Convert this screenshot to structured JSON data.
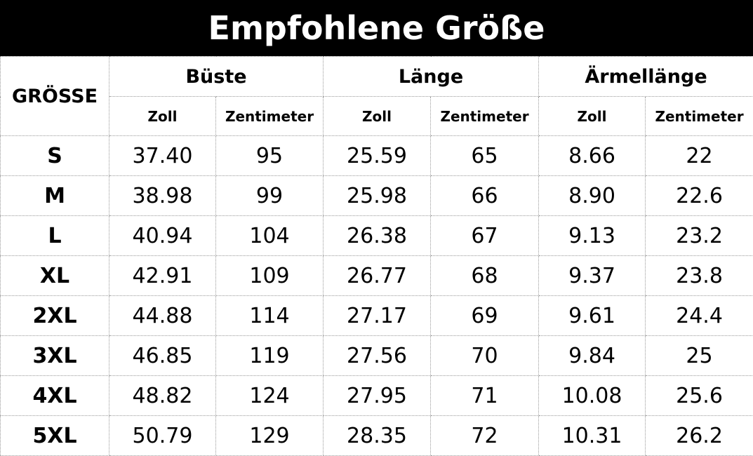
{
  "title": "Empfohlene Größe",
  "table": {
    "size_header": "GRÖSSE",
    "groups": [
      {
        "label": "Büste",
        "units": [
          "Zoll",
          "Zentimeter"
        ]
      },
      {
        "label": "Länge",
        "units": [
          "Zoll",
          "Zentimeter"
        ]
      },
      {
        "label": "Ärmellänge",
        "units": [
          "Zoll",
          "Zentimeter"
        ]
      }
    ],
    "rows": [
      [
        "S",
        "37.40",
        "95",
        "25.59",
        "65",
        "8.66",
        "22"
      ],
      [
        "M",
        "38.98",
        "99",
        "25.98",
        "66",
        "8.90",
        "22.6"
      ],
      [
        "L",
        "40.94",
        "104",
        "26.38",
        "67",
        "9.13",
        "23.2"
      ],
      [
        "XL",
        "42.91",
        "109",
        "26.77",
        "68",
        "9.37",
        "23.8"
      ],
      [
        "2XL",
        "44.88",
        "114",
        "27.17",
        "69",
        "9.61",
        "24.4"
      ],
      [
        "3XL",
        "46.85",
        "119",
        "27.56",
        "70",
        "9.84",
        "25"
      ],
      [
        "4XL",
        "48.82",
        "124",
        "27.95",
        "71",
        "10.08",
        "25.6"
      ],
      [
        "5XL",
        "50.79",
        "129",
        "28.35",
        "72",
        "10.31",
        "26.2"
      ]
    ]
  }
}
